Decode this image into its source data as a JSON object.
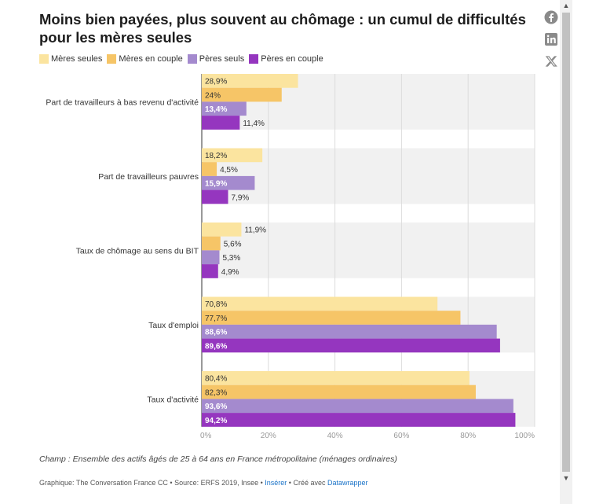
{
  "header": {
    "title": "Moins bien payées, plus souvent au chômage : un cumul de difficultés pour les mères seules"
  },
  "share": {
    "icons": [
      "facebook-icon",
      "linkedin-icon",
      "x-icon"
    ]
  },
  "chart_data": {
    "type": "bar",
    "orientation": "horizontal",
    "categories": [
      "Part de travailleurs à bas revenu d'activité",
      "Part de travailleurs pauvres",
      "Taux de chômage au sens du BIT",
      "Taux d'emploi",
      "Taux d'activité"
    ],
    "series": [
      {
        "name": "Mères seules",
        "color": "#fbe49f",
        "values": [
          28.9,
          18.2,
          11.9,
          70.8,
          80.4
        ],
        "labels": [
          "28,9%",
          "18,2%",
          "11,9%",
          "70,8%",
          "80,4%"
        ]
      },
      {
        "name": "Mères en couple",
        "color": "#f6c567",
        "values": [
          24,
          4.5,
          5.6,
          77.7,
          82.3
        ],
        "labels": [
          "24%",
          "4,5%",
          "5,6%",
          "77,7%",
          "82,3%"
        ]
      },
      {
        "name": "Pères seuls",
        "color": "#a48ace",
        "values": [
          13.4,
          15.9,
          5.3,
          88.6,
          93.6
        ],
        "labels": [
          "13,4%",
          "15,9%",
          "5,3%",
          "88,6%",
          "93,6%"
        ]
      },
      {
        "name": "Pères en couple",
        "color": "#9536bf",
        "values": [
          11.4,
          7.9,
          4.9,
          89.6,
          94.2
        ],
        "labels": [
          "11,4%",
          "7,9%",
          "4,9%",
          "89,6%",
          "94,2%"
        ]
      }
    ],
    "xlim": [
      0,
      100
    ],
    "xticks": [
      "0%",
      "20%",
      "40%",
      "60%",
      "80%",
      "100%"
    ],
    "legend": "top-left",
    "grid": true
  },
  "note": "Champ : Ensemble des actifs âgés de 25 à 64 ans en France métropolitaine (ménages ordinaires)",
  "footer": {
    "credit": "Graphique: The Conversation France CC • Source: ERFS 2019, Insee • ",
    "embed_link": "Insérer",
    "created_sep": " • Créé avec ",
    "tool_link": "Datawrapper"
  },
  "scrollbar": {
    "up": "▲",
    "down": "▼"
  }
}
